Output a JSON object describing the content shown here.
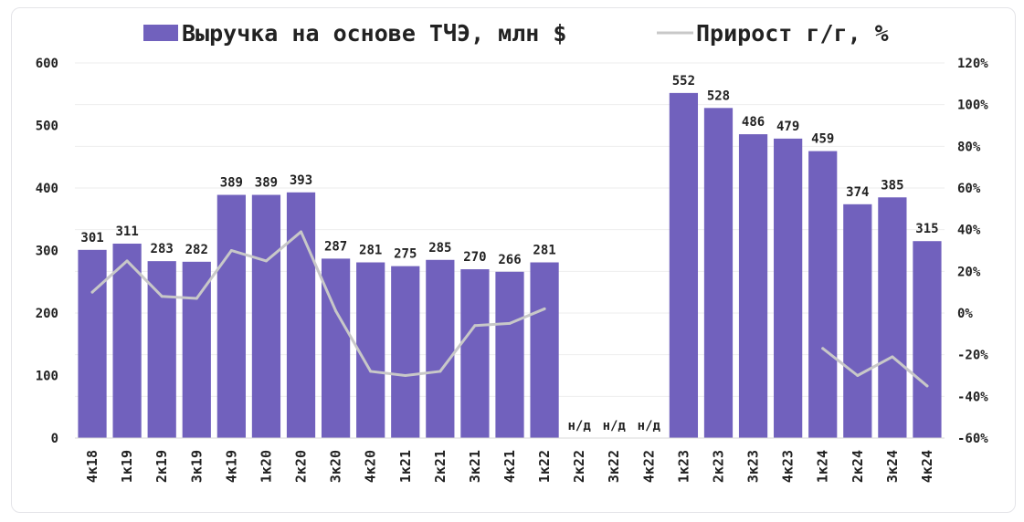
{
  "chart_data": {
    "type": "bar",
    "legend": {
      "placement": "top-center",
      "bar_label": "Выручка на основе ТЧЭ, млн $",
      "line_label": "Прирост г/г, %"
    },
    "categories": [
      "4к18",
      "1к19",
      "2к19",
      "3к19",
      "4к19",
      "1к20",
      "2к20",
      "3к20",
      "4к20",
      "1к21",
      "2к21",
      "3к21",
      "4к21",
      "1к22",
      "2к22",
      "3к22",
      "4к22",
      "1к23",
      "2к23",
      "3к23",
      "4к23",
      "1к24",
      "2к24",
      "3к24",
      "4к24"
    ],
    "series": [
      {
        "name": "Выручка на основе ТЧЭ, млн $",
        "type": "bar",
        "axis": "left",
        "values": [
          301,
          311,
          283,
          282,
          389,
          389,
          393,
          287,
          281,
          275,
          285,
          270,
          266,
          281,
          null,
          null,
          null,
          552,
          528,
          486,
          479,
          459,
          374,
          385,
          315
        ],
        "labels": [
          "301",
          "311",
          "283",
          "282",
          "389",
          "389",
          "393",
          "287",
          "281",
          "275",
          "285",
          "270",
          "266",
          "281",
          "н/д",
          "н/д",
          "н/д",
          "552",
          "528",
          "486",
          "479",
          "459",
          "374",
          "385",
          "315"
        ]
      },
      {
        "name": "Прирост г/г, %",
        "type": "line",
        "axis": "right",
        "values": [
          10,
          25,
          8,
          7,
          30,
          25,
          39,
          1,
          -28,
          -30,
          -28,
          -6,
          -5,
          2,
          null,
          null,
          null,
          null,
          null,
          null,
          null,
          -17,
          -30,
          -21,
          -35
        ]
      }
    ],
    "y_left": {
      "min": 0,
      "max": 600,
      "ticks": [
        "0",
        "100",
        "200",
        "300",
        "400",
        "500",
        "600"
      ]
    },
    "y_right": {
      "min": -60,
      "max": 120,
      "ticks": [
        "-60%",
        "-40%",
        "-20%",
        "0%",
        "20%",
        "40%",
        "60%",
        "80%",
        "100%",
        "120%"
      ]
    },
    "grid": true,
    "colors": {
      "bar": "#7161bd",
      "line": "#c8c8c8",
      "grid": "#eeeeee",
      "text": "#222222"
    }
  }
}
